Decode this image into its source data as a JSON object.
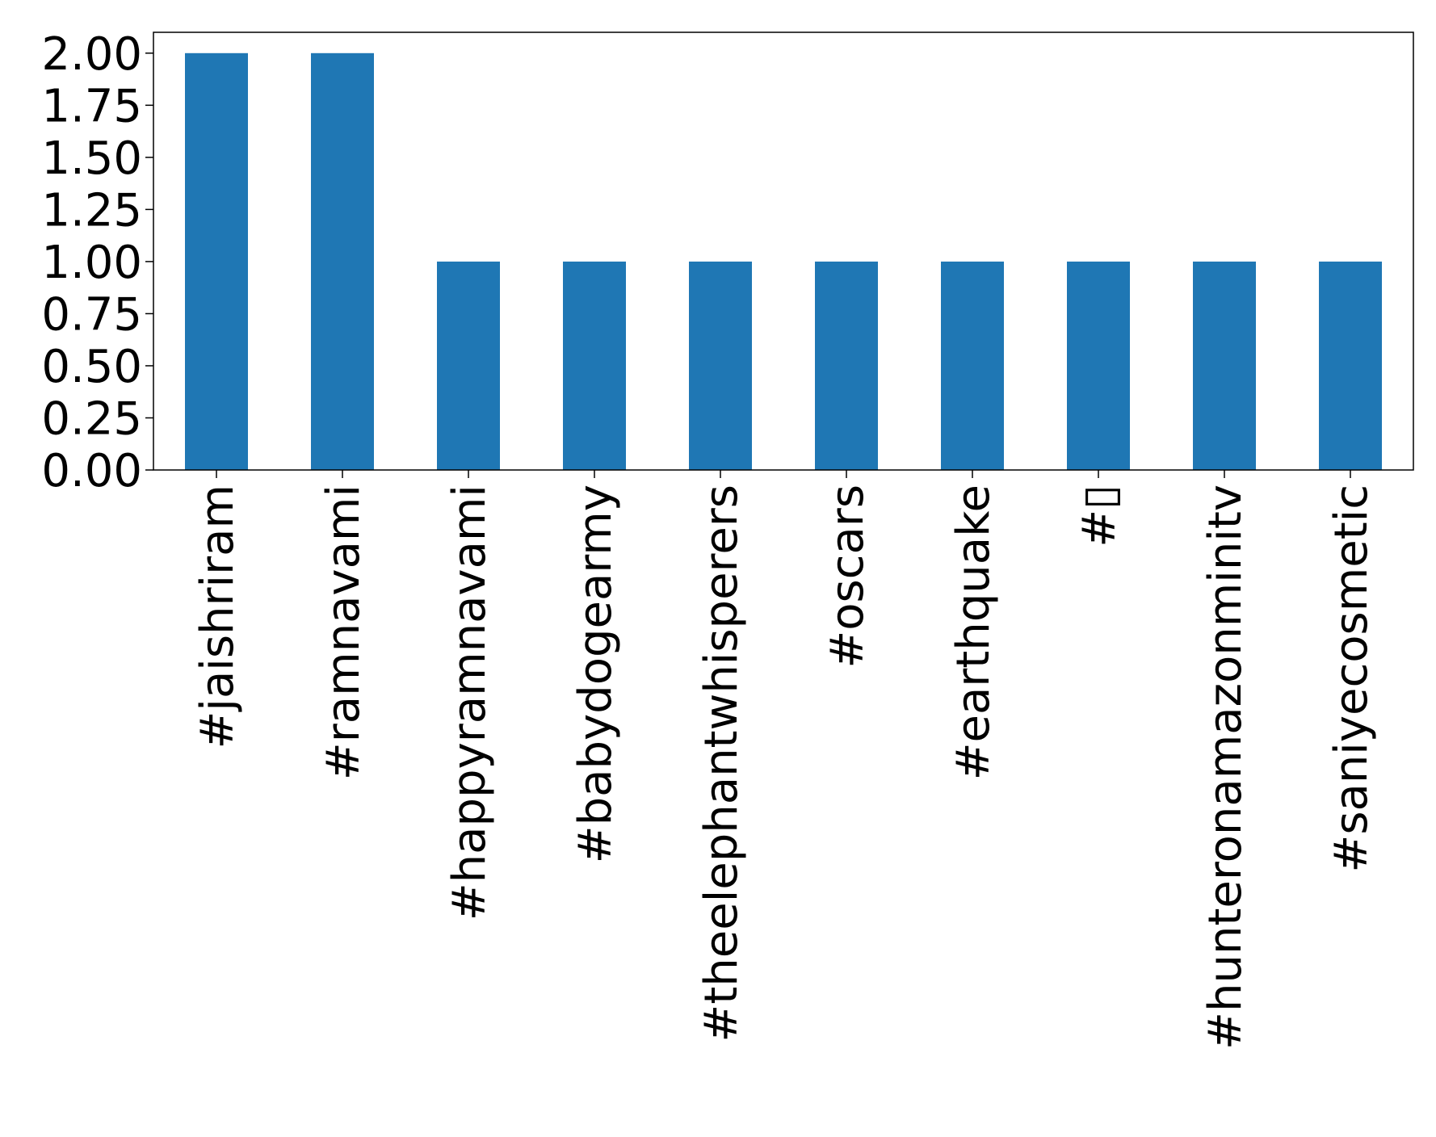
{
  "chart_data": {
    "type": "bar",
    "categories": [
      "#jaishriram",
      "#ramnavami",
      "#happyramnavami",
      "#babydogearmy",
      "#theelephantwhisperers",
      "#oscars",
      "#earthquake",
      "#▯",
      "#hunteronamazonminitv",
      "#saniyecosmetic"
    ],
    "values": [
      2,
      2,
      1,
      1,
      1,
      1,
      1,
      1,
      1,
      1
    ],
    "yticks": [
      "0.00",
      "0.25",
      "0.50",
      "0.75",
      "1.00",
      "1.25",
      "1.50",
      "1.75",
      "2.00"
    ],
    "ylim": [
      0,
      2.1
    ],
    "title": "",
    "xlabel": "",
    "ylabel": "",
    "grid": false,
    "bar_color": "#1f77b4",
    "axis_color": "#000000"
  }
}
